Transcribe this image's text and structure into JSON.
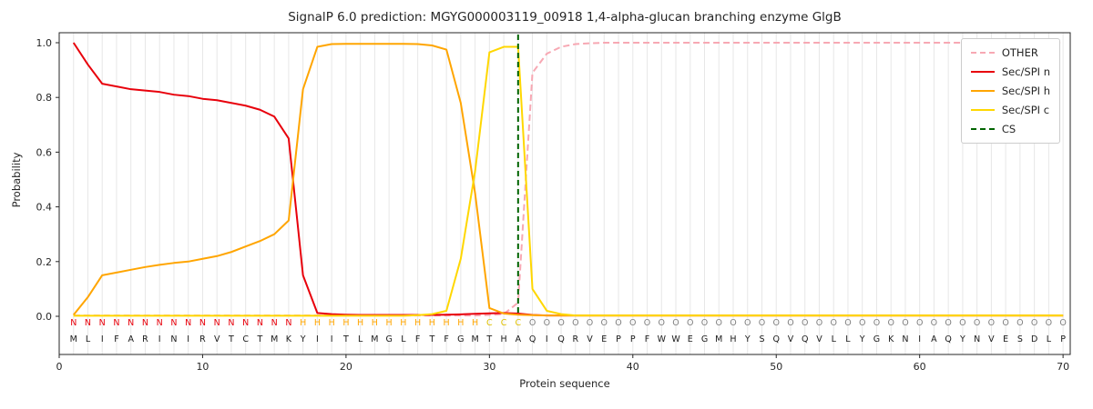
{
  "chart_data": {
    "type": "line",
    "title": "SignalP 6.0 prediction: MGYG000003119_00918 1,4-alpha-glucan branching enzyme GlgB",
    "xlabel": "Protein sequence",
    "ylabel": "Probability",
    "xticks": [
      0,
      10,
      20,
      30,
      40,
      50,
      60,
      70
    ],
    "yticks": [
      0.0,
      0.2,
      0.4,
      0.6,
      0.8,
      1.0
    ],
    "xlim": [
      0,
      70.5
    ],
    "ylim": [
      -0.14,
      1.04
    ],
    "grid": "vertical line per residue",
    "legend_position": "upper right",
    "x": [
      1,
      2,
      3,
      4,
      5,
      6,
      7,
      8,
      9,
      10,
      11,
      12,
      13,
      14,
      15,
      16,
      17,
      18,
      19,
      20,
      21,
      22,
      23,
      24,
      25,
      26,
      27,
      28,
      29,
      30,
      31,
      32,
      33,
      34,
      35,
      36,
      37,
      38,
      39,
      40,
      41,
      42,
      43,
      44,
      45,
      46,
      47,
      48,
      49,
      50,
      51,
      52,
      53,
      54,
      55,
      56,
      57,
      58,
      59,
      60,
      61,
      62,
      63,
      64,
      65,
      66,
      67,
      68,
      69,
      70
    ],
    "series": [
      {
        "name": "OTHER",
        "color": "#f7a8b3",
        "dashed": true,
        "values": [
          0.003,
          0.003,
          0.003,
          0.003,
          0.003,
          0.003,
          0.003,
          0.003,
          0.003,
          0.003,
          0.003,
          0.003,
          0.003,
          0.003,
          0.003,
          0.003,
          0.003,
          0.003,
          0.003,
          0.003,
          0.003,
          0.003,
          0.003,
          0.003,
          0.003,
          0.003,
          0.003,
          0.003,
          0.003,
          0.005,
          0.008,
          0.05,
          0.89,
          0.96,
          0.985,
          0.995,
          0.998,
          1.0,
          1.0,
          1.0,
          1.0,
          1.0,
          1.0,
          1.0,
          1.0,
          1.0,
          1.0,
          1.0,
          1.0,
          1.0,
          1.0,
          1.0,
          1.0,
          1.0,
          1.0,
          1.0,
          1.0,
          1.0,
          1.0,
          1.0,
          1.0,
          1.0,
          1.0,
          1.0,
          1.0,
          1.0,
          1.0,
          1.0,
          1.0,
          1.0
        ]
      },
      {
        "name": "Sec/SPI n",
        "color": "#e8000b",
        "dashed": false,
        "values": [
          1.0,
          0.92,
          0.85,
          0.84,
          0.83,
          0.825,
          0.82,
          0.81,
          0.805,
          0.795,
          0.79,
          0.78,
          0.77,
          0.755,
          0.73,
          0.65,
          0.15,
          0.012,
          0.008,
          0.006,
          0.005,
          0.005,
          0.005,
          0.005,
          0.005,
          0.005,
          0.006,
          0.007,
          0.009,
          0.011,
          0.012,
          0.01,
          0.005,
          0.003,
          0.003,
          0.003,
          0.003,
          0.003,
          0.003,
          0.003,
          0.003,
          0.003,
          0.003,
          0.003,
          0.003,
          0.003,
          0.003,
          0.003,
          0.003,
          0.003,
          0.003,
          0.003,
          0.003,
          0.003,
          0.003,
          0.003,
          0.003,
          0.003,
          0.003,
          0.003,
          0.003,
          0.003,
          0.003,
          0.003,
          0.003,
          0.003,
          0.003,
          0.003,
          0.003,
          0.003
        ]
      },
      {
        "name": "Sec/SPI h",
        "color": "#ffa500",
        "dashed": false,
        "values": [
          0.005,
          0.07,
          0.15,
          0.16,
          0.17,
          0.18,
          0.188,
          0.195,
          0.2,
          0.21,
          0.22,
          0.235,
          0.255,
          0.275,
          0.3,
          0.35,
          0.83,
          0.985,
          0.995,
          0.996,
          0.996,
          0.996,
          0.996,
          0.996,
          0.995,
          0.99,
          0.975,
          0.78,
          0.45,
          0.03,
          0.01,
          0.006,
          0.004,
          0.003,
          0.003,
          0.003,
          0.003,
          0.003,
          0.003,
          0.003,
          0.003,
          0.003,
          0.003,
          0.003,
          0.003,
          0.003,
          0.003,
          0.003,
          0.003,
          0.003,
          0.003,
          0.003,
          0.003,
          0.003,
          0.003,
          0.003,
          0.003,
          0.003,
          0.003,
          0.003,
          0.003,
          0.003,
          0.003,
          0.003,
          0.003,
          0.003,
          0.003,
          0.003,
          0.003,
          0.003
        ]
      },
      {
        "name": "Sec/SPI c",
        "color": "#ffd700",
        "dashed": false,
        "values": [
          0.002,
          0.002,
          0.002,
          0.002,
          0.002,
          0.002,
          0.002,
          0.002,
          0.002,
          0.002,
          0.002,
          0.002,
          0.002,
          0.002,
          0.002,
          0.002,
          0.002,
          0.002,
          0.002,
          0.002,
          0.002,
          0.002,
          0.002,
          0.002,
          0.004,
          0.008,
          0.02,
          0.21,
          0.53,
          0.965,
          0.985,
          0.985,
          0.1,
          0.02,
          0.008,
          0.003,
          0.003,
          0.003,
          0.003,
          0.003,
          0.003,
          0.003,
          0.003,
          0.003,
          0.003,
          0.003,
          0.003,
          0.003,
          0.003,
          0.003,
          0.003,
          0.003,
          0.003,
          0.003,
          0.003,
          0.003,
          0.003,
          0.003,
          0.003,
          0.003,
          0.003,
          0.003,
          0.003,
          0.003,
          0.003,
          0.003,
          0.003,
          0.003,
          0.003,
          0.003
        ]
      }
    ],
    "cs_line": {
      "label": "CS",
      "x": 32,
      "color": "#006400",
      "dashed": true
    },
    "sequence": [
      "M",
      "L",
      "I",
      "F",
      "A",
      "R",
      "I",
      "N",
      "I",
      "R",
      "V",
      "T",
      "C",
      "T",
      "M",
      "K",
      "Y",
      "I",
      "I",
      "T",
      "L",
      "M",
      "G",
      "L",
      "F",
      "T",
      "F",
      "G",
      "M",
      "T",
      "H",
      "A",
      "Q",
      "I",
      "Q",
      "R",
      "V",
      "E",
      "P",
      "P",
      "F",
      "W",
      "W",
      "E",
      "G",
      "M",
      "H",
      "Y",
      "S",
      "Q",
      "V",
      "Q",
      "V",
      "L",
      "L",
      "Y",
      "G",
      "K",
      "N",
      "I",
      "A",
      "Q",
      "Y",
      "N",
      "V",
      "E",
      "S",
      "D",
      "L",
      "P"
    ],
    "states": [
      "N",
      "N",
      "N",
      "N",
      "N",
      "N",
      "N",
      "N",
      "N",
      "N",
      "N",
      "N",
      "N",
      "N",
      "N",
      "N",
      "H",
      "H",
      "H",
      "H",
      "H",
      "H",
      "H",
      "H",
      "H",
      "H",
      "H",
      "H",
      "H",
      "C",
      "C",
      "C",
      "O",
      "O",
      "O",
      "O",
      "O",
      "O",
      "O",
      "O",
      "O",
      "O",
      "O",
      "O",
      "O",
      "O",
      "O",
      "O",
      "O",
      "O",
      "O",
      "O",
      "O",
      "O",
      "O",
      "O",
      "O",
      "O",
      "O",
      "O",
      "O",
      "O",
      "O",
      "O",
      "O",
      "O",
      "O",
      "O",
      "O",
      "O"
    ],
    "state_colors": {
      "N": "#e8000b",
      "H": "#ffa500",
      "C": "#dfc000",
      "O": "#808080"
    }
  }
}
